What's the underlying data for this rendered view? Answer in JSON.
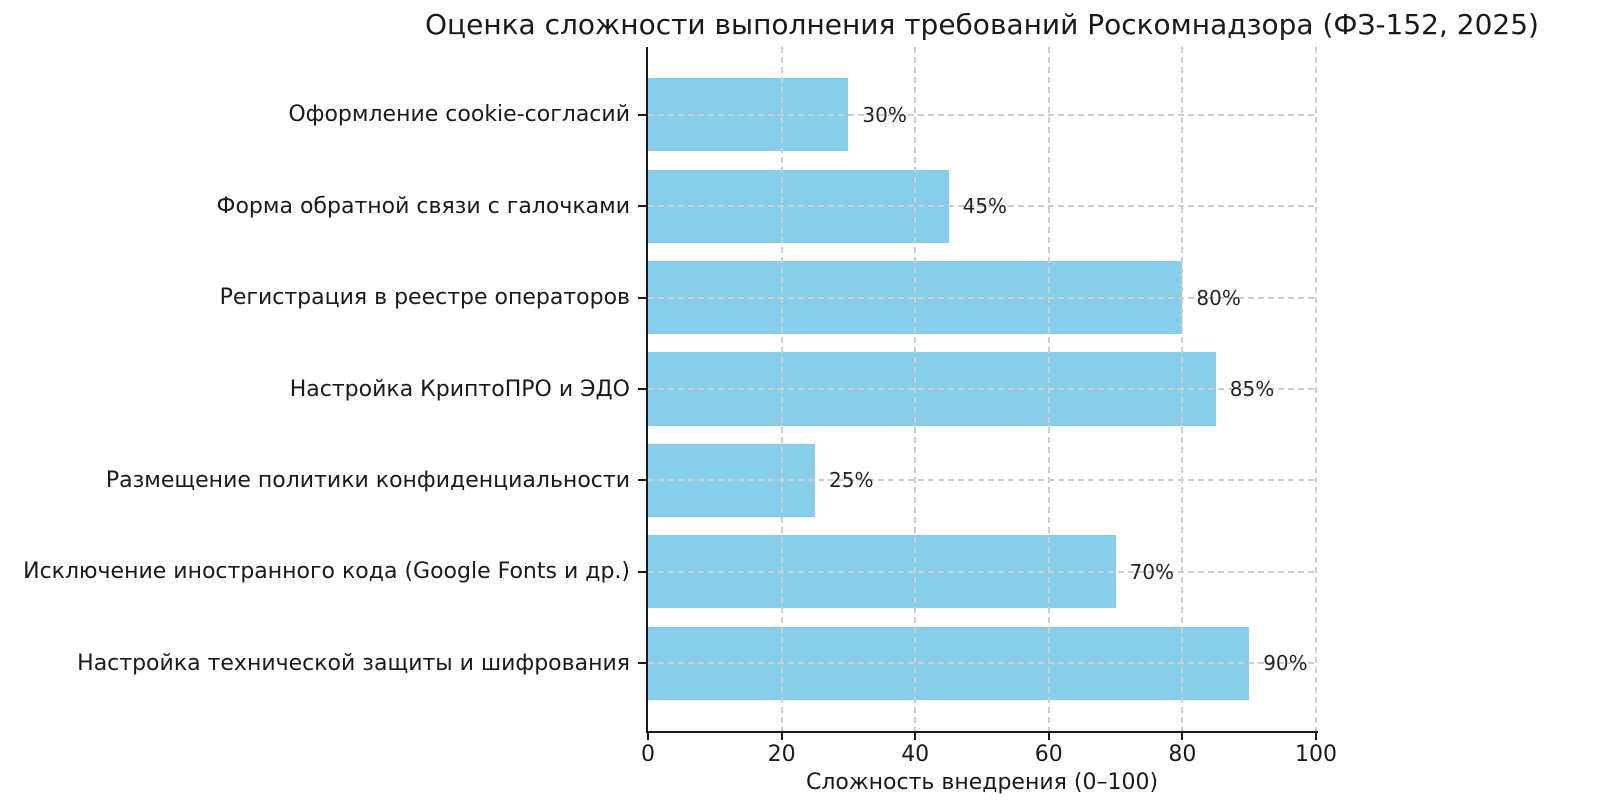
{
  "chart_data": {
    "type": "bar",
    "orientation": "horizontal",
    "title": "Оценка сложности выполнения требований Роскомнадзора (ФЗ-152, 2025)",
    "xlabel": "Сложность внедрения (0–100)",
    "ylabel": "",
    "categories": [
      "Оформление cookie-согласий",
      "Форма обратной связи с галочками",
      "Регистрация в реестре операторов",
      "Настройка КриптоПРО и ЭДО",
      "Размещение политики конфиденциальности",
      "Исключение иностранного кода (Google Fonts и др.)",
      "Настройка технической защиты и шифрования"
    ],
    "values": [
      30,
      45,
      80,
      85,
      25,
      70,
      90
    ],
    "value_labels": [
      "30%",
      "45%",
      "80%",
      "85%",
      "25%",
      "70%",
      "90%"
    ],
    "xlim": [
      0,
      100
    ],
    "xticks": [
      0,
      20,
      40,
      60,
      80,
      100
    ],
    "xtick_labels": [
      "0",
      "20",
      "40",
      "60",
      "80",
      "100"
    ],
    "grid": true,
    "grid_style": "dashed",
    "grid_above_bars": true,
    "legend": "none",
    "bar_color": "#87CEEB",
    "grid_color": "#cdcdcd",
    "spine_color": "#1a1a1a",
    "text_color": "#1a1a1a"
  }
}
